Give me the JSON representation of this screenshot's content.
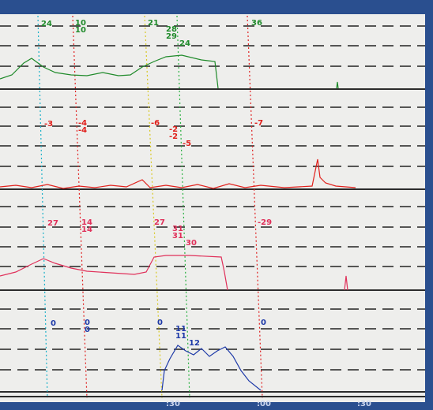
{
  "channels": [
    {
      "color": "#1f8a2a",
      "labels": [
        "24",
        "10",
        "10",
        "21",
        "28",
        "29",
        "24",
        "36"
      ]
    },
    {
      "color": "#e0201c",
      "labels": [
        "-3",
        "-4",
        "-4",
        "-6",
        "-2",
        "-2",
        "-5",
        "-7"
      ]
    },
    {
      "color": "#e0305a",
      "labels": [
        "27",
        "14",
        "14",
        "27",
        "31",
        "31",
        "30",
        "-29"
      ]
    },
    {
      "color": "#1e3aa8",
      "labels": [
        "0",
        "0",
        "0",
        "0",
        "11",
        "11",
        "12",
        "0"
      ]
    }
  ],
  "time_axis": {
    "labels": [
      ":30",
      ":00",
      ":30"
    ]
  }
}
